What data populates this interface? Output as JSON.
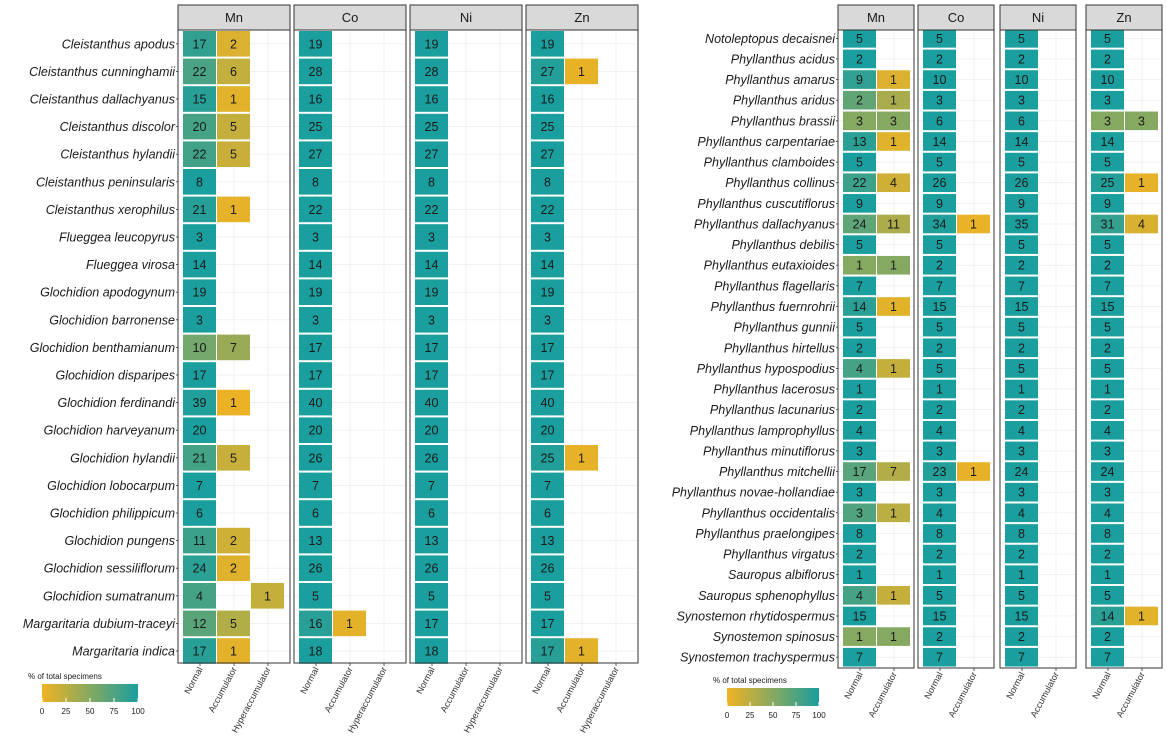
{
  "chart_data": [
    {
      "type": "heatmap",
      "title": "",
      "facets": [
        "Mn",
        "Co",
        "Ni",
        "Zn"
      ],
      "x_categories": [
        "Normal",
        "Accumulator",
        "Hyperaccumulator"
      ],
      "x_categories_last_facet": [
        "Normal",
        "Accumulator",
        "Hyperaccumulator"
      ],
      "legend": {
        "title": "% of total specimens",
        "ticks": [
          "0",
          "25",
          "50",
          "75",
          "100"
        ],
        "low_color": "#F0B323",
        "high_color": "#1B9E9E"
      },
      "species": [
        "Cleistanthus apodus",
        "Cleistanthus cunninghamii",
        "Cleistanthus dallachyanus",
        "Cleistanthus discolor",
        "Cleistanthus hylandii",
        "Cleistanthus peninsularis",
        "Cleistanthus xerophilus",
        "Flueggea leucopyrus",
        "Flueggea virosa",
        "Glochidion apodogynum",
        "Glochidion barronense",
        "Glochidion benthamianum",
        "Glochidion disparipes",
        "Glochidion ferdinandi",
        "Glochidion harveyanum",
        "Glochidion hylandii",
        "Glochidion lobocarpum",
        "Glochidion philippicum",
        "Glochidion pungens",
        "Glochidion sessiliflorum",
        "Glochidion sumatranum",
        "Margaritaria dubium-traceyi",
        "Margaritaria indica"
      ],
      "values": {
        "Mn": [
          [
            17,
            2,
            null
          ],
          [
            22,
            6,
            null
          ],
          [
            15,
            1,
            null
          ],
          [
            20,
            5,
            null
          ],
          [
            22,
            5,
            null
          ],
          [
            8,
            null,
            null
          ],
          [
            21,
            1,
            null
          ],
          [
            3,
            null,
            null
          ],
          [
            14,
            null,
            null
          ],
          [
            19,
            null,
            null
          ],
          [
            3,
            null,
            null
          ],
          [
            10,
            7,
            null
          ],
          [
            17,
            null,
            null
          ],
          [
            39,
            1,
            null
          ],
          [
            20,
            null,
            null
          ],
          [
            21,
            5,
            null
          ],
          [
            7,
            null,
            null
          ],
          [
            6,
            null,
            null
          ],
          [
            11,
            2,
            null
          ],
          [
            24,
            2,
            null
          ],
          [
            4,
            null,
            1
          ],
          [
            12,
            5,
            null
          ],
          [
            17,
            1,
            null
          ]
        ],
        "Co": [
          [
            19,
            null,
            null
          ],
          [
            28,
            null,
            null
          ],
          [
            16,
            null,
            null
          ],
          [
            25,
            null,
            null
          ],
          [
            27,
            null,
            null
          ],
          [
            8,
            null,
            null
          ],
          [
            22,
            null,
            null
          ],
          [
            3,
            null,
            null
          ],
          [
            14,
            null,
            null
          ],
          [
            19,
            null,
            null
          ],
          [
            3,
            null,
            null
          ],
          [
            17,
            null,
            null
          ],
          [
            17,
            null,
            null
          ],
          [
            40,
            null,
            null
          ],
          [
            20,
            null,
            null
          ],
          [
            26,
            null,
            null
          ],
          [
            7,
            null,
            null
          ],
          [
            6,
            null,
            null
          ],
          [
            13,
            null,
            null
          ],
          [
            26,
            null,
            null
          ],
          [
            5,
            null,
            null
          ],
          [
            16,
            1,
            null
          ],
          [
            18,
            null,
            null
          ]
        ],
        "Ni": [
          [
            19,
            null,
            null
          ],
          [
            28,
            null,
            null
          ],
          [
            16,
            null,
            null
          ],
          [
            25,
            null,
            null
          ],
          [
            27,
            null,
            null
          ],
          [
            8,
            null,
            null
          ],
          [
            22,
            null,
            null
          ],
          [
            3,
            null,
            null
          ],
          [
            14,
            null,
            null
          ],
          [
            19,
            null,
            null
          ],
          [
            3,
            null,
            null
          ],
          [
            17,
            null,
            null
          ],
          [
            17,
            null,
            null
          ],
          [
            40,
            null,
            null
          ],
          [
            20,
            null,
            null
          ],
          [
            26,
            null,
            null
          ],
          [
            7,
            null,
            null
          ],
          [
            6,
            null,
            null
          ],
          [
            13,
            null,
            null
          ],
          [
            26,
            null,
            null
          ],
          [
            5,
            null,
            null
          ],
          [
            17,
            null,
            null
          ],
          [
            18,
            null,
            null
          ]
        ],
        "Zn": [
          [
            19,
            null,
            null
          ],
          [
            27,
            1,
            null
          ],
          [
            16,
            null,
            null
          ],
          [
            25,
            null,
            null
          ],
          [
            27,
            null,
            null
          ],
          [
            8,
            null,
            null
          ],
          [
            22,
            null,
            null
          ],
          [
            3,
            null,
            null
          ],
          [
            14,
            null,
            null
          ],
          [
            19,
            null,
            null
          ],
          [
            3,
            null,
            null
          ],
          [
            17,
            null,
            null
          ],
          [
            17,
            null,
            null
          ],
          [
            40,
            null,
            null
          ],
          [
            20,
            null,
            null
          ],
          [
            25,
            1,
            null
          ],
          [
            7,
            null,
            null
          ],
          [
            6,
            null,
            null
          ],
          [
            13,
            null,
            null
          ],
          [
            26,
            null,
            null
          ],
          [
            5,
            null,
            null
          ],
          [
            17,
            null,
            null
          ],
          [
            17,
            1,
            null
          ]
        ]
      }
    },
    {
      "type": "heatmap",
      "title": "",
      "facets": [
        "Mn",
        "Co",
        "Ni",
        "Zn"
      ],
      "x_categories": [
        "Normal",
        "Accumulator"
      ],
      "x_categories_last_facet": [
        "Normal",
        "Accumulator"
      ],
      "legend": {
        "title": "% of total specimens",
        "ticks": [
          "0",
          "25",
          "50",
          "75",
          "100"
        ],
        "low_color": "#F0B323",
        "high_color": "#1B9E9E"
      },
      "species": [
        "Notoleptopus decaisnei",
        "Phyllanthus acidus",
        "Phyllanthus amarus",
        "Phyllanthus aridus",
        "Phyllanthus brassii",
        "Phyllanthus carpentariae",
        "Phyllanthus clamboides",
        "Phyllanthus collinus",
        "Phyllanthus cuscutiflorus",
        "Phyllanthus dallachyanus",
        "Phyllanthus debilis",
        "Phyllanthus eutaxioides",
        "Phyllanthus flagellaris",
        "Phyllanthus fuernrohrii",
        "Phyllanthus gunnii",
        "Phyllanthus hirtellus",
        "Phyllanthus hypospodius",
        "Phyllanthus lacerosus",
        "Phyllanthus lacunarius",
        "Phyllanthus lamprophyllus",
        "Phyllanthus minutiflorus",
        "Phyllanthus mitchellii",
        "Phyllanthus novae-hollandiae",
        "Phyllanthus occidentalis",
        "Phyllanthus praelongipes",
        "Phyllanthus virgatus",
        "Sauropus albiflorus",
        "Sauropus sphenophyllus",
        "Synostemon rhytidospermus",
        "Synostemon spinosus",
        "Synostemon trachyspermus"
      ],
      "values": {
        "Mn": [
          [
            5,
            null
          ],
          [
            2,
            null
          ],
          [
            9,
            1
          ],
          [
            2,
            1
          ],
          [
            3,
            3
          ],
          [
            13,
            1
          ],
          [
            5,
            null
          ],
          [
            22,
            4
          ],
          [
            9,
            null
          ],
          [
            24,
            11
          ],
          [
            5,
            null
          ],
          [
            1,
            1
          ],
          [
            7,
            null
          ],
          [
            14,
            1
          ],
          [
            5,
            null
          ],
          [
            2,
            null
          ],
          [
            4,
            1
          ],
          [
            1,
            null
          ],
          [
            2,
            null
          ],
          [
            4,
            null
          ],
          [
            3,
            null
          ],
          [
            17,
            7
          ],
          [
            3,
            null
          ],
          [
            3,
            1
          ],
          [
            8,
            null
          ],
          [
            2,
            null
          ],
          [
            1,
            null
          ],
          [
            4,
            1
          ],
          [
            15,
            null
          ],
          [
            1,
            1
          ],
          [
            7,
            null
          ]
        ],
        "Co": [
          [
            5,
            null
          ],
          [
            2,
            null
          ],
          [
            10,
            null
          ],
          [
            3,
            null
          ],
          [
            6,
            null
          ],
          [
            14,
            null
          ],
          [
            5,
            null
          ],
          [
            26,
            null
          ],
          [
            9,
            null
          ],
          [
            34,
            1
          ],
          [
            5,
            null
          ],
          [
            2,
            null
          ],
          [
            7,
            null
          ],
          [
            15,
            null
          ],
          [
            5,
            null
          ],
          [
            2,
            null
          ],
          [
            5,
            null
          ],
          [
            1,
            null
          ],
          [
            2,
            null
          ],
          [
            4,
            null
          ],
          [
            3,
            null
          ],
          [
            23,
            1
          ],
          [
            3,
            null
          ],
          [
            4,
            null
          ],
          [
            8,
            null
          ],
          [
            2,
            null
          ],
          [
            1,
            null
          ],
          [
            5,
            null
          ],
          [
            15,
            null
          ],
          [
            2,
            null
          ],
          [
            7,
            null
          ]
        ],
        "Ni": [
          [
            5,
            null
          ],
          [
            2,
            null
          ],
          [
            10,
            null
          ],
          [
            3,
            null
          ],
          [
            6,
            null
          ],
          [
            14,
            null
          ],
          [
            5,
            null
          ],
          [
            26,
            null
          ],
          [
            9,
            null
          ],
          [
            35,
            null
          ],
          [
            5,
            null
          ],
          [
            2,
            null
          ],
          [
            7,
            null
          ],
          [
            15,
            null
          ],
          [
            5,
            null
          ],
          [
            2,
            null
          ],
          [
            5,
            null
          ],
          [
            1,
            null
          ],
          [
            2,
            null
          ],
          [
            4,
            null
          ],
          [
            3,
            null
          ],
          [
            24,
            null
          ],
          [
            3,
            null
          ],
          [
            4,
            null
          ],
          [
            8,
            null
          ],
          [
            2,
            null
          ],
          [
            1,
            null
          ],
          [
            5,
            null
          ],
          [
            15,
            null
          ],
          [
            2,
            null
          ],
          [
            7,
            null
          ]
        ],
        "Zn": [
          [
            5,
            null
          ],
          [
            2,
            null
          ],
          [
            10,
            null
          ],
          [
            3,
            null
          ],
          [
            3,
            3
          ],
          [
            14,
            null
          ],
          [
            5,
            null
          ],
          [
            25,
            1
          ],
          [
            9,
            null
          ],
          [
            31,
            4
          ],
          [
            5,
            null
          ],
          [
            2,
            null
          ],
          [
            7,
            null
          ],
          [
            15,
            null
          ],
          [
            5,
            null
          ],
          [
            2,
            null
          ],
          [
            5,
            null
          ],
          [
            1,
            null
          ],
          [
            2,
            null
          ],
          [
            4,
            null
          ],
          [
            3,
            null
          ],
          [
            24,
            null
          ],
          [
            3,
            null
          ],
          [
            4,
            null
          ],
          [
            8,
            null
          ],
          [
            2,
            null
          ],
          [
            1,
            null
          ],
          [
            5,
            null
          ],
          [
            14,
            1
          ],
          [
            2,
            null
          ],
          [
            7,
            null
          ]
        ]
      }
    }
  ]
}
